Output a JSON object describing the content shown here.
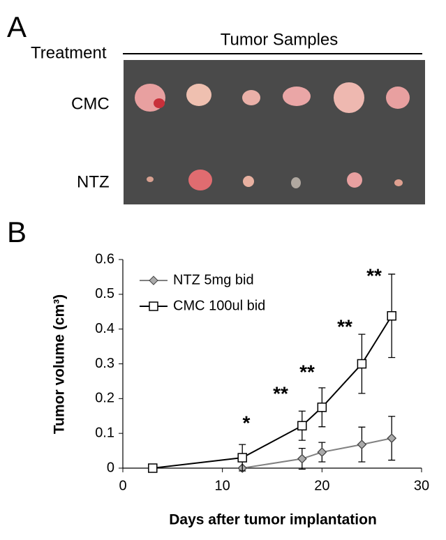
{
  "figure": {
    "panel_a": {
      "label": "A",
      "treatment": "Treatment",
      "header": "Tumor Samples",
      "rows": [
        "CMC",
        "NTZ"
      ]
    },
    "panel_b_label": "B"
  },
  "chart_data": {
    "type": "line",
    "x_label": "Days after tumor implantation",
    "y_label": "Tumor volume (cm³)",
    "x": [
      3,
      12,
      18,
      20,
      24,
      27
    ],
    "series": [
      {
        "name": "NTZ 5mg bid",
        "color": "#808080",
        "marker": "diamond",
        "values": [
          null,
          0,
          0.027,
          0.046,
          0.068,
          0.086
        ],
        "errors": [
          null,
          0,
          0.03,
          0.028,
          0.05,
          0.063
        ]
      },
      {
        "name": "CMC 100ul bid",
        "color": "#000000",
        "marker": "square",
        "values": [
          0,
          0.03,
          0.122,
          0.175,
          0.3,
          0.438
        ],
        "errors": [
          0,
          0.038,
          0.042,
          0.056,
          0.085,
          0.12
        ]
      }
    ],
    "annotations": [
      "*",
      "**",
      "**",
      "**",
      "**"
    ],
    "xlim": [
      0,
      30
    ],
    "xticks": [
      0,
      10,
      20,
      30
    ],
    "ylim": [
      0,
      0.6
    ],
    "yticks": [
      0,
      0.1,
      0.2,
      0.3,
      0.4,
      0.5,
      0.6
    ],
    "legend": "upper left"
  }
}
